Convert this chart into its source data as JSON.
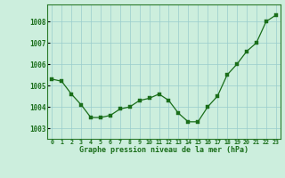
{
  "x": [
    0,
    1,
    2,
    3,
    4,
    5,
    6,
    7,
    8,
    9,
    10,
    11,
    12,
    13,
    14,
    15,
    16,
    17,
    18,
    19,
    20,
    21,
    22,
    23
  ],
  "y": [
    1005.3,
    1005.2,
    1004.6,
    1004.1,
    1003.5,
    1003.5,
    1003.6,
    1003.9,
    1004.0,
    1004.3,
    1004.4,
    1004.6,
    1004.3,
    1003.7,
    1003.3,
    1003.3,
    1004.0,
    1004.5,
    1005.5,
    1006.0,
    1006.6,
    1007.0,
    1008.0,
    1008.3
  ],
  "line_color": "#1a6e1a",
  "marker_color": "#1a6e1a",
  "bg_color": "#cceedd",
  "grid_color": "#99cccc",
  "ylabel_ticks": [
    1003,
    1004,
    1005,
    1006,
    1007,
    1008
  ],
  "xlabel": "Graphe pression niveau de la mer (hPa)",
  "ylim": [
    1002.5,
    1008.8
  ],
  "xlim": [
    -0.5,
    23.5
  ]
}
